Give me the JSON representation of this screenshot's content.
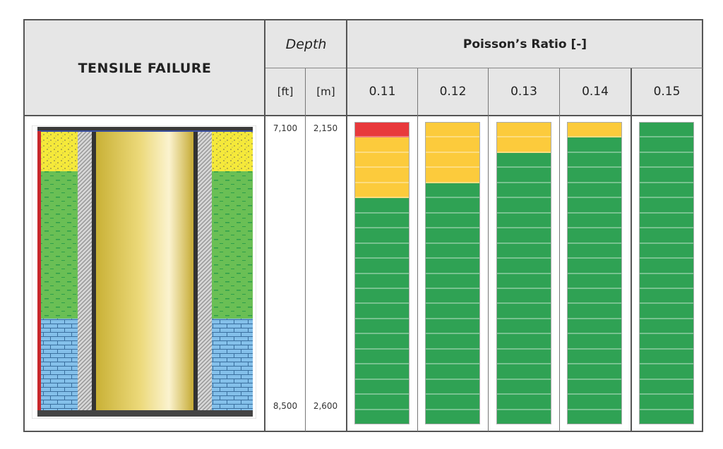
{
  "header": {
    "title": "TENSILE FAILURE",
    "depth_label": "Depth",
    "ratio_label": "Poisson’s Ratio [-]",
    "unit_ft": "[ft]",
    "unit_m": "[m]"
  },
  "depth": {
    "top_ft": "7,100",
    "top_m": "2,150",
    "bottom_ft": "8,500",
    "bottom_m": "2,600"
  },
  "colors": {
    "red": "#e8393c",
    "yellow": "#fccb3c",
    "green": "#2fa254",
    "header_bg": "#e6e6e6"
  },
  "chart_data": {
    "type": "heatmap",
    "segments_per_column": 20,
    "columns": [
      {
        "ratio": "0.11",
        "red": 1,
        "yellow": 4
      },
      {
        "ratio": "0.12",
        "red": 0,
        "yellow": 4
      },
      {
        "ratio": "0.13",
        "red": 0,
        "yellow": 2
      },
      {
        "ratio": "0.14",
        "red": 0,
        "yellow": 1
      },
      {
        "ratio": "0.15",
        "red": 0,
        "yellow": 0
      }
    ]
  },
  "wellbore": {
    "layers": [
      "sandstone",
      "shale",
      "limestone"
    ]
  }
}
